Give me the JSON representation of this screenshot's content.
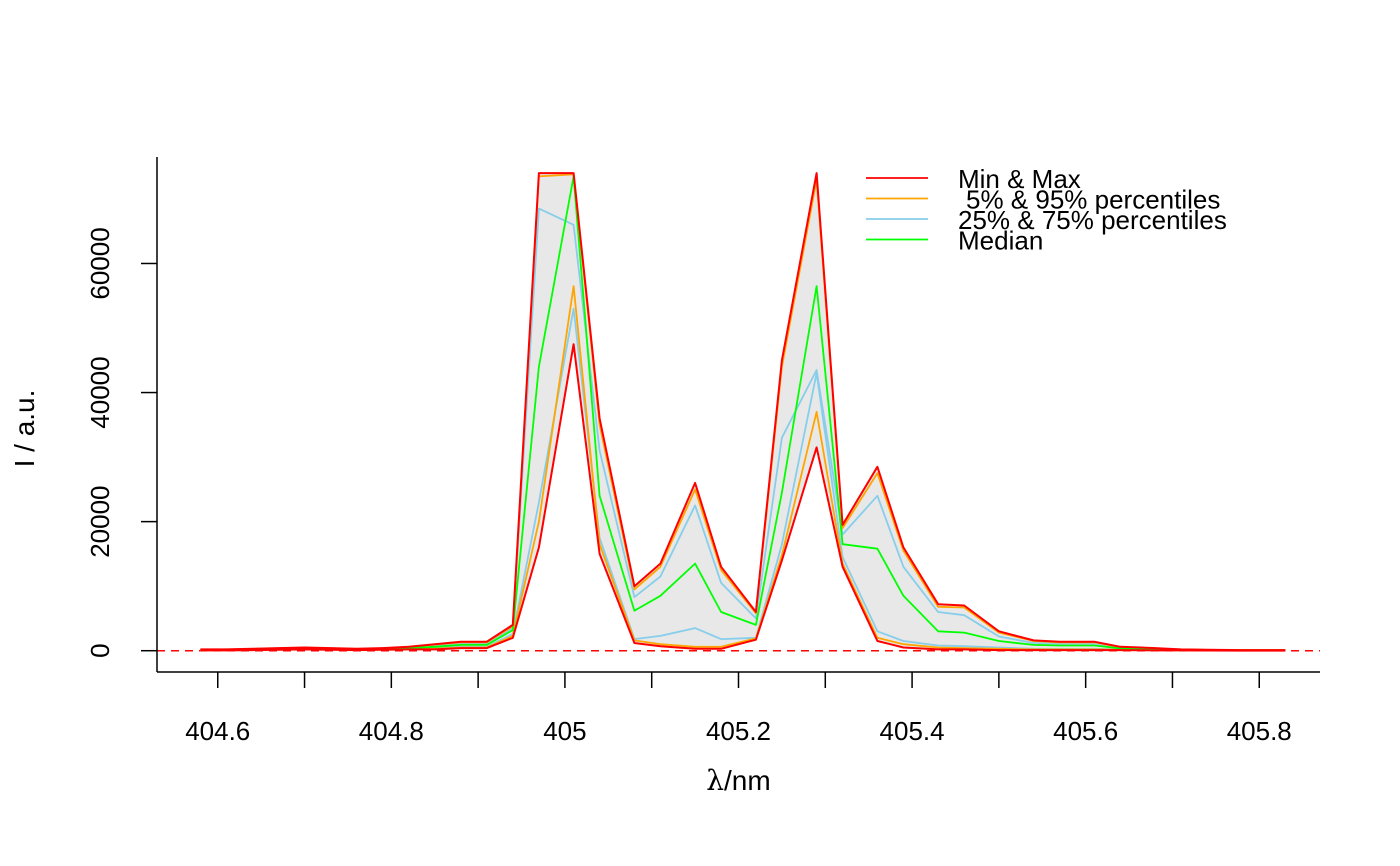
{
  "chart_data": {
    "type": "line",
    "title": "",
    "xlabel_symbol": "λ",
    "xlabel_unit": "/nm",
    "ylabel": "I / a.u.",
    "xlim": [
      404.53,
      405.87
    ],
    "ylim": [
      -3300,
      76500
    ],
    "xticks": [
      404.6,
      404.8,
      405.0,
      405.2,
      405.4,
      405.6,
      405.8
    ],
    "xtick_labels": [
      "404.6",
      "404.8",
      "405",
      "405.2",
      "405.4",
      "405.6",
      "405.8"
    ],
    "yticks": [
      0,
      20000,
      40000,
      60000
    ],
    "ytick_labels": [
      "0",
      "20000",
      "40000",
      "60000"
    ],
    "baseline": 0,
    "band_color": "#e8e8e8",
    "grid": false,
    "legend": {
      "placement": "top-right",
      "entries": [
        {
          "label": "Min & Max",
          "color": "#ff0000"
        },
        {
          "label": "5% & 95% percentiles",
          "color": "#ffa500"
        },
        {
          "label": "25% & 75% percentiles",
          "color": "#87ceeb"
        },
        {
          "label": "Median",
          "color": "#00ff00"
        }
      ]
    },
    "x": [
      404.58,
      404.61,
      404.64,
      404.67,
      404.7,
      404.73,
      404.76,
      404.79,
      404.82,
      404.85,
      404.88,
      404.91,
      404.94,
      404.97,
      405.01,
      405.04,
      405.08,
      405.11,
      405.15,
      405.18,
      405.22,
      405.25,
      405.29,
      405.32,
      405.36,
      405.39,
      405.43,
      405.46,
      405.5,
      405.54,
      405.57,
      405.61,
      405.64,
      405.68,
      405.71,
      405.74,
      405.78,
      405.81,
      405.83
    ],
    "series": [
      {
        "name": "Max",
        "color": "#ff0000",
        "values": [
          200,
          200,
          300,
          400,
          500,
          400,
          300,
          400,
          600,
          1000,
          1400,
          1400,
          4000,
          74000,
          74000,
          36000,
          10000,
          13500,
          26000,
          13000,
          6000,
          45000,
          74000,
          19500,
          28500,
          16000,
          7200,
          7000,
          3000,
          1600,
          1400,
          1400,
          600,
          400,
          200,
          150,
          100,
          100,
          100
        ]
      },
      {
        "name": "95%",
        "color": "#ffa500",
        "values": [
          180,
          180,
          280,
          380,
          450,
          380,
          280,
          380,
          550,
          950,
          1300,
          1300,
          3800,
          73500,
          73800,
          35000,
          9500,
          13000,
          25000,
          12500,
          5800,
          44000,
          73000,
          19000,
          27500,
          15500,
          6800,
          6700,
          2800,
          1500,
          1300,
          1300,
          550,
          350,
          180,
          130,
          90,
          90,
          90
        ]
      },
      {
        "name": "75%",
        "color": "#87ceeb",
        "values": [
          150,
          150,
          250,
          350,
          400,
          350,
          250,
          350,
          500,
          800,
          1100,
          1100,
          3500,
          68500,
          66000,
          31000,
          8300,
          11500,
          22500,
          10500,
          5000,
          33000,
          43500,
          18000,
          24000,
          13000,
          6000,
          5500,
          2200,
          1200,
          1100,
          1100,
          450,
          300,
          150,
          120,
          80,
          80,
          80
        ]
      },
      {
        "name": "Median",
        "color": "#00ff00",
        "values": [
          120,
          120,
          200,
          300,
          350,
          300,
          200,
          300,
          400,
          600,
          900,
          900,
          3200,
          44000,
          73500,
          24000,
          6200,
          8500,
          13500,
          6000,
          4000,
          24500,
          56500,
          16500,
          15800,
          8500,
          3000,
          2800,
          1500,
          900,
          800,
          800,
          350,
          250,
          120,
          100,
          60,
          60,
          60
        ]
      },
      {
        "name": "25%",
        "color": "#87ceeb",
        "values": [
          100,
          100,
          150,
          250,
          300,
          250,
          150,
          250,
          300,
          400,
          600,
          600,
          2600,
          23000,
          53000,
          17500,
          1800,
          2300,
          3500,
          1800,
          2000,
          16500,
          43000,
          14500,
          3000,
          1500,
          800,
          700,
          500,
          300,
          300,
          300,
          200,
          150,
          100,
          80,
          50,
          50,
          50
        ]
      },
      {
        "name": "5%",
        "color": "#ffa500",
        "values": [
          80,
          80,
          120,
          200,
          250,
          200,
          120,
          200,
          250,
          300,
          500,
          500,
          2300,
          20000,
          56500,
          16500,
          1600,
          1000,
          600,
          600,
          1900,
          14800,
          37000,
          13500,
          2000,
          1000,
          500,
          400,
          300,
          200,
          200,
          200,
          150,
          100,
          80,
          60,
          40,
          40,
          40
        ]
      },
      {
        "name": "Min",
        "color": "#ff0000",
        "values": [
          50,
          50,
          100,
          150,
          200,
          150,
          100,
          150,
          200,
          200,
          400,
          400,
          2000,
          16000,
          47500,
          15000,
          1200,
          700,
          300,
          300,
          1700,
          14000,
          31500,
          13000,
          1500,
          500,
          200,
          200,
          100,
          100,
          100,
          100,
          100,
          50,
          50,
          30,
          20,
          20,
          20
        ]
      }
    ]
  }
}
